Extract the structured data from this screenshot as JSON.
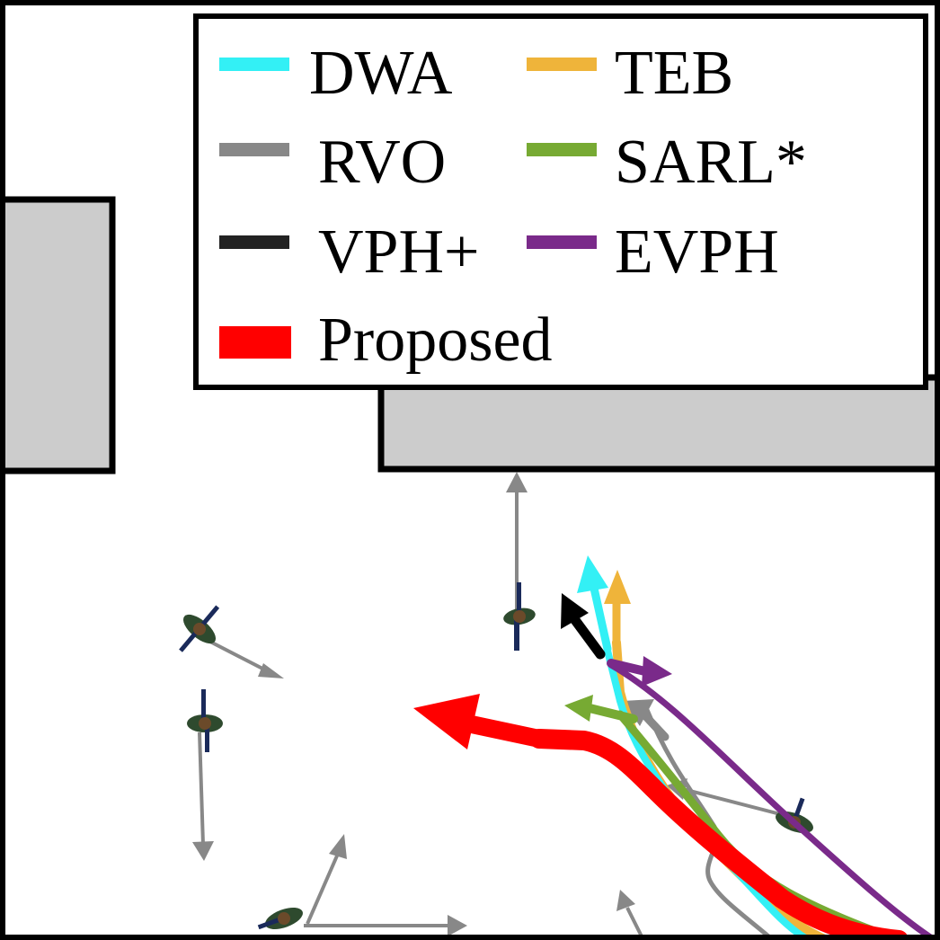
{
  "legend": {
    "items": [
      {
        "id": "dwa",
        "label": "DWA",
        "color": "#33f0f5"
      },
      {
        "id": "teb",
        "label": "TEB",
        "color": "#efb43a"
      },
      {
        "id": "rvo",
        "label": "RVO",
        "color": "#888888"
      },
      {
        "id": "sarl",
        "label": "SARL*",
        "color": "#77aa33"
      },
      {
        "id": "vph",
        "label": "VPH+",
        "color": "#222222"
      },
      {
        "id": "evph",
        "label": "EVPH",
        "color": "#7a2a8a"
      },
      {
        "id": "proposed",
        "label": "Proposed",
        "color": "#ff0000"
      }
    ]
  },
  "colors": {
    "obstacle_fill": "#cccccc",
    "border": "#000000",
    "pedestrian_arrow": "#888888",
    "pedestrian_body": "#2e4a2e"
  },
  "icons": {
    "pedestrian": "pedestrian-icon"
  }
}
